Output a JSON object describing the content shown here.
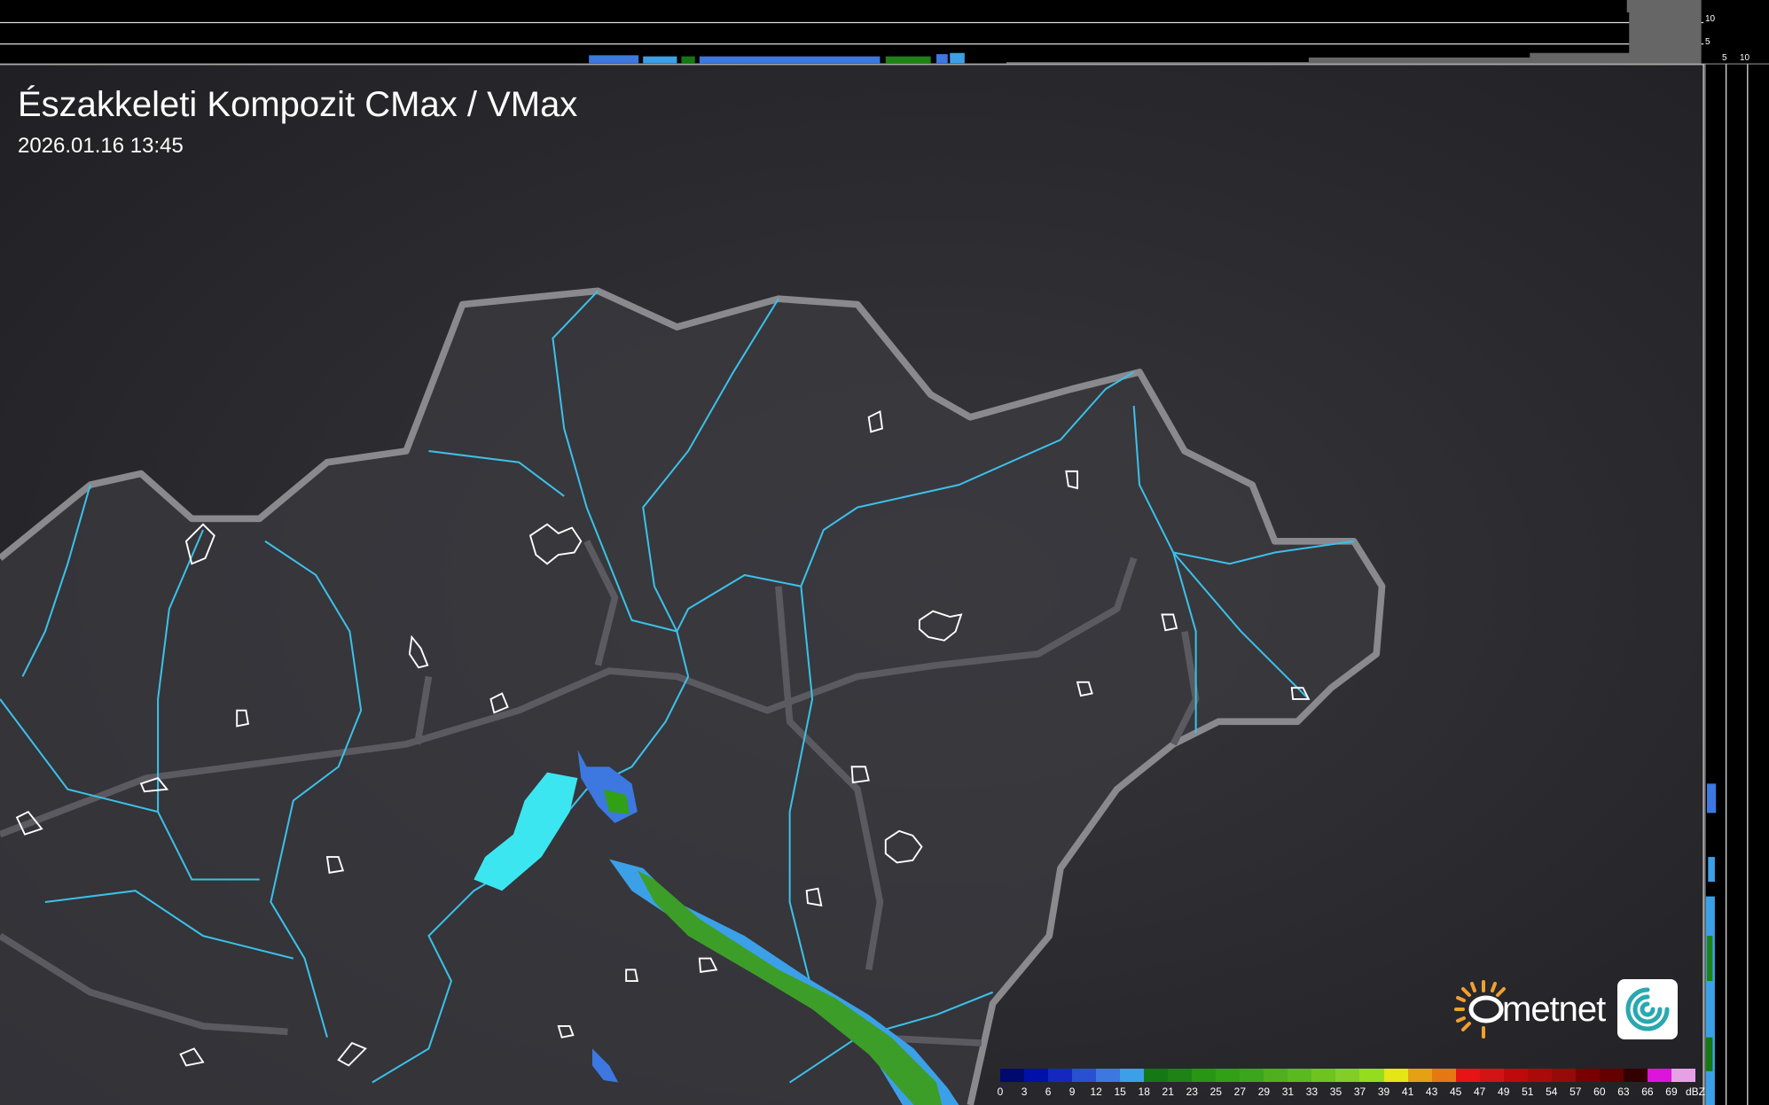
{
  "header": {
    "title": "Északkeleti Kompozit CMax / VMax",
    "timestamp": "2026.01.16 13:45"
  },
  "top_profile": {
    "axis_labels": [
      "10",
      "5"
    ]
  },
  "side_profile": {
    "axis_labels": [
      "5",
      "10"
    ]
  },
  "legend": {
    "labels": [
      "0",
      "3",
      "6",
      "9",
      "12",
      "15",
      "18",
      "21",
      "23",
      "25",
      "27",
      "29",
      "31",
      "33",
      "35",
      "37",
      "39",
      "41",
      "43",
      "45",
      "47",
      "49",
      "51",
      "54",
      "57",
      "60",
      "63",
      "66",
      "69"
    ],
    "unit": "dBZ",
    "colors": [
      "#000a6e",
      "#0010a8",
      "#1428c0",
      "#2850d0",
      "#3c78e0",
      "#3ca0e8",
      "#147814",
      "#1e8214",
      "#289614",
      "#32a014",
      "#3ca51e",
      "#50af1e",
      "#5ab91e",
      "#6ec31e",
      "#82cd28",
      "#96dc1e",
      "#e6e614",
      "#e6a014",
      "#e67814",
      "#e61414",
      "#d21414",
      "#be0a0a",
      "#aa0a0a",
      "#960a0a",
      "#780000",
      "#640000",
      "#320000",
      "#dc14dc",
      "#e6a0e6",
      "#8ce6e6"
    ]
  },
  "logo": {
    "text": "metnet",
    "sun_color": "#f0a030",
    "box_color": "#2aa8b0"
  },
  "colors": {
    "background": "#2c2c30",
    "border": "#8a8a8e",
    "river": "#3cc0e8",
    "city": "#ffffff"
  }
}
